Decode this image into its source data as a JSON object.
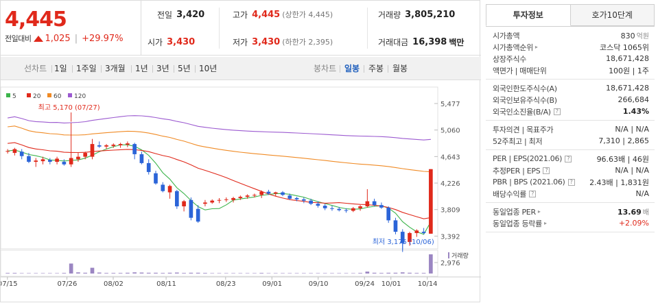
{
  "summary": {
    "price": "4,445",
    "change_label": "전일대비",
    "change": "1,025",
    "change_pct": "+29.97%",
    "prev_close_label": "전일",
    "prev_close": "3,420",
    "high_label": "고가",
    "high": "4,445",
    "upper_limit": "(상한가 4,445)",
    "volume_label": "거래량",
    "volume": "3,805,210",
    "open_label": "시가",
    "open": "3,430",
    "low_label": "저가",
    "low": "3,430",
    "lower_limit": "(하한가 2,395)",
    "amount_label": "거래대금",
    "amount": "16,398",
    "amount_unit": "백만"
  },
  "toolbar": {
    "line_chart": "선차트",
    "periods": [
      "1일",
      "1주일",
      "3개월",
      "1년",
      "3년",
      "5년",
      "10년"
    ],
    "candle_chart": "봉차트",
    "candle_periods": [
      "일봉",
      "주봉",
      "월봉"
    ],
    "candle_selected": "일봉"
  },
  "right_panel": {
    "tabs": [
      "투자정보",
      "호가10단계"
    ],
    "active_tab": "투자정보",
    "groups": [
      [
        {
          "k": "시가총액",
          "v": "830",
          "unit": "억원"
        },
        {
          "k": "시가총액순위",
          "v": "코스닥 1065위",
          "caret": true
        },
        {
          "k": "상장주식수",
          "v": "18,671,428"
        },
        {
          "k": "액면가 | 매매단위",
          "v": "100원 | 1주"
        }
      ],
      [
        {
          "k": "외국인한도주식수(A)",
          "v": "18,671,428"
        },
        {
          "k": "외국인보유주식수(B)",
          "v": "266,684"
        },
        {
          "k": "외국인소진율(B/A)",
          "v": "1.43%",
          "bold": true,
          "help": true
        }
      ],
      [
        {
          "k": "투자의견 | 목표주가",
          "v": "N/A | N/A"
        },
        {
          "k": "52주최고 | 최저",
          "v": "7,310 | 2,865"
        }
      ],
      [
        {
          "k": "PER | EPS(2021.06)",
          "v": "96.63배 | 46원",
          "help": true
        },
        {
          "k": "추정PER | EPS",
          "v": "N/A | N/A",
          "help": true
        },
        {
          "k": "PBR | BPS (2021.06)",
          "v": "2.43배 | 1,831원",
          "help": true
        },
        {
          "k": "배당수익률",
          "v": "N/A",
          "help": true
        }
      ],
      [
        {
          "k": "동일업종 PER",
          "v": "13.69",
          "unit": "배",
          "bold": true,
          "caret": true
        },
        {
          "k": "동일업종 등락률",
          "v": "+2.09%",
          "red": true,
          "caret": true
        }
      ]
    ]
  },
  "chart_data": {
    "type": "candlestick",
    "legend": [
      {
        "name": "5",
        "color": "#3cb44b"
      },
      {
        "name": "20",
        "color": "#e0291b"
      },
      {
        "name": "60",
        "color": "#f08a24"
      },
      {
        "name": "120",
        "color": "#9b59d0"
      }
    ],
    "y_ticks": [
      "5,477",
      "5,060",
      "4,643",
      "4,226",
      "3,809",
      "3,392",
      "2,976"
    ],
    "ylim": [
      2976,
      5477
    ],
    "x_ticks": [
      "07/15",
      "07/26",
      "08/02",
      "08/11",
      "08/23",
      "09/01",
      "09/10",
      "09/24",
      "10/01",
      "10/14"
    ],
    "high_annotation": "최고 5,170 (07/27)",
    "low_annotation": "최저 3,175 (10/06)",
    "volume_label": "거래량",
    "candles": [
      [
        4720,
        4760,
        4690,
        4730
      ],
      [
        4700,
        4780,
        4660,
        4760
      ],
      [
        4720,
        4760,
        4600,
        4650
      ],
      [
        4650,
        4700,
        4540,
        4560
      ],
      [
        4560,
        4620,
        4480,
        4580
      ],
      [
        4570,
        4640,
        4520,
        4600
      ],
      [
        4590,
        4620,
        4520,
        4560
      ],
      [
        4560,
        4640,
        4520,
        4610
      ],
      [
        4560,
        4600,
        4500,
        4520
      ],
      [
        4520,
        5170,
        4480,
        4620
      ],
      [
        4600,
        4700,
        4560,
        4640
      ],
      [
        4640,
        4720,
        4600,
        4700
      ],
      [
        4640,
        4920,
        4600,
        4840
      ],
      [
        4820,
        4880,
        4780,
        4800
      ],
      [
        4800,
        4840,
        4760,
        4820
      ],
      [
        4810,
        4850,
        4780,
        4830
      ],
      [
        4820,
        4860,
        4780,
        4840
      ],
      [
        4830,
        4880,
        4790,
        4850
      ],
      [
        4840,
        4860,
        4600,
        4680
      ],
      [
        4680,
        4720,
        4520,
        4540
      ],
      [
        4540,
        4600,
        4360,
        4400
      ],
      [
        4380,
        4420,
        4200,
        4220
      ],
      [
        4200,
        4240,
        4080,
        4100
      ],
      [
        4080,
        4200,
        3980,
        4180
      ],
      [
        4100,
        4120,
        3820,
        3860
      ],
      [
        3860,
        3960,
        3780,
        3940
      ],
      [
        3960,
        4000,
        3640,
        3680
      ],
      [
        3820,
        3880,
        3600,
        3620
      ],
      [
        3900,
        3960,
        3860,
        3920
      ],
      [
        3920,
        3970,
        3900,
        3950
      ],
      [
        3950,
        3990,
        3910,
        3960
      ],
      [
        3960,
        4000,
        3930,
        3970
      ],
      [
        3960,
        4010,
        3920,
        3990
      ],
      [
        3990,
        4030,
        3960,
        4010
      ],
      [
        4010,
        4050,
        3980,
        4030
      ],
      [
        4030,
        4060,
        4000,
        4040
      ],
      [
        4040,
        4110,
        3990,
        4090
      ],
      [
        4090,
        4120,
        4040,
        4060
      ],
      [
        4060,
        4090,
        4020,
        4080
      ],
      [
        4080,
        4100,
        4020,
        4040
      ],
      [
        4030,
        4060,
        3960,
        3980
      ],
      [
        3990,
        4010,
        3940,
        3970
      ],
      [
        3970,
        4000,
        3910,
        3950
      ],
      [
        3950,
        3980,
        3880,
        3900
      ],
      [
        3900,
        3940,
        3840,
        3870
      ],
      [
        3870,
        3900,
        3800,
        3830
      ],
      [
        3830,
        3870,
        3790,
        3820
      ],
      [
        3820,
        3850,
        3780,
        3800
      ],
      [
        3800,
        3830,
        3760,
        3790
      ],
      [
        3790,
        3850,
        3770,
        3830
      ],
      [
        3830,
        3880,
        3790,
        3860
      ],
      [
        3860,
        4130,
        3840,
        3940
      ],
      [
        3940,
        3980,
        3860,
        3880
      ],
      [
        3880,
        3920,
        3820,
        3840
      ],
      [
        3840,
        3860,
        3600,
        3640
      ],
      [
        3640,
        3680,
        3420,
        3460
      ],
      [
        3460,
        3500,
        3175,
        3280
      ],
      [
        3300,
        3460,
        3240,
        3440
      ],
      [
        3440,
        3500,
        3380,
        3480
      ],
      [
        3460,
        3520,
        3420,
        3440
      ],
      [
        3430,
        4445,
        3430,
        4445
      ]
    ],
    "volumes": [
      3,
      3,
      2,
      2,
      2,
      2,
      2,
      2,
      3,
      52,
      6,
      4,
      30,
      5,
      3,
      3,
      3,
      4,
      6,
      5,
      4,
      4,
      3,
      4,
      5,
      3,
      4,
      4,
      3,
      2,
      2,
      2,
      2,
      2,
      2,
      2,
      3,
      2,
      2,
      2,
      2,
      2,
      2,
      2,
      2,
      2,
      2,
      2,
      2,
      2,
      3,
      10,
      4,
      3,
      4,
      4,
      6,
      4,
      3,
      3,
      100
    ]
  }
}
